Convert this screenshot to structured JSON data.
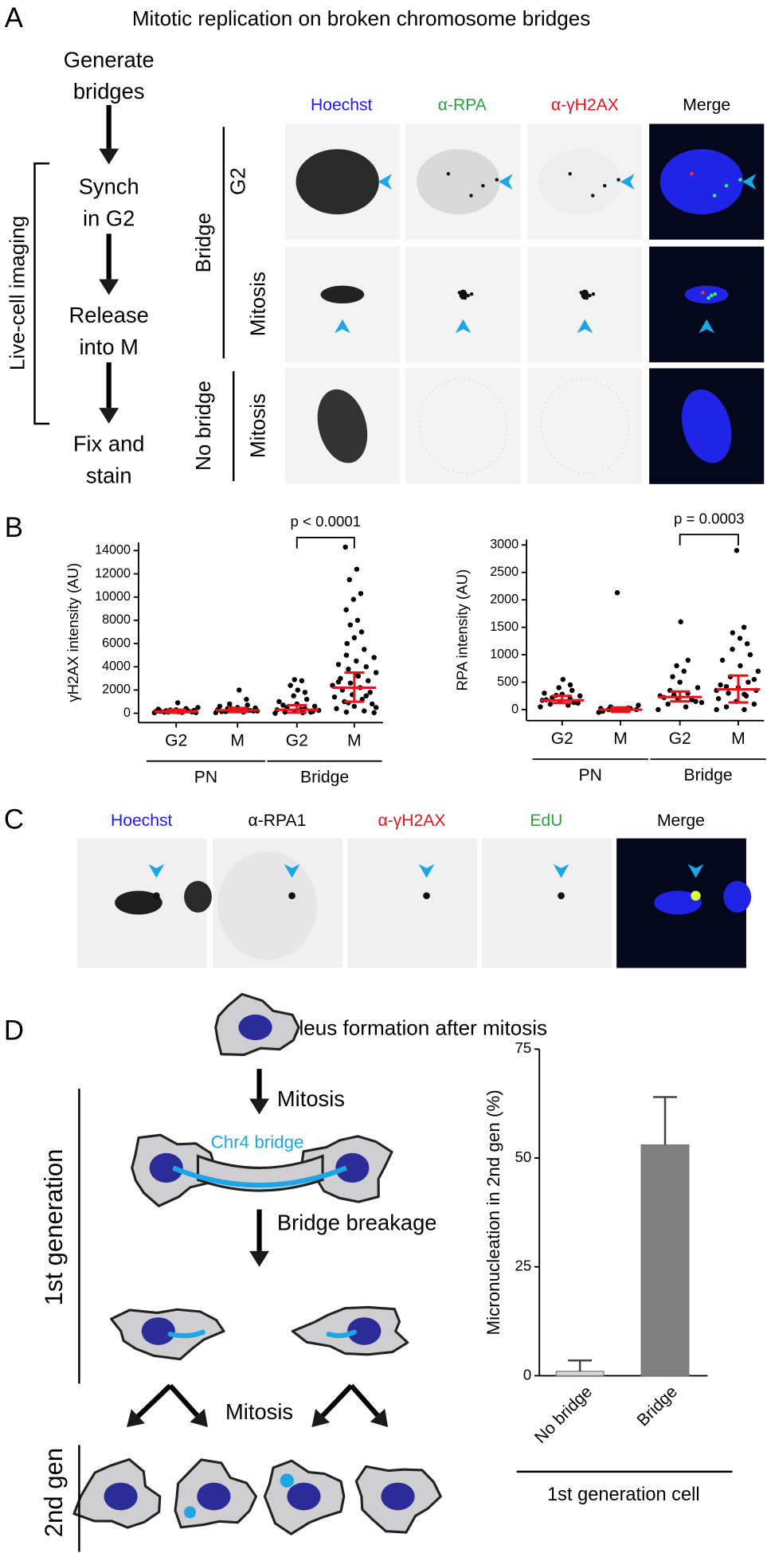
{
  "panel_a": {
    "label": "A",
    "title": "Mitotic replication on broken chromosome bridges",
    "workflow": [
      [
        "Generate",
        "bridges"
      ],
      [
        "Synch",
        "in G2"
      ],
      [
        "Release",
        "into M"
      ],
      [
        "Fix and",
        "stain"
      ]
    ],
    "bracket_label": "Live-cell imaging",
    "columns": [
      "Hoechst",
      "α-RPA",
      "α-γH2AX",
      "Merge"
    ],
    "row_groups": [
      "Bridge",
      "No bridge"
    ],
    "rows": [
      "G2",
      "Mitosis",
      "Mitosis"
    ]
  },
  "panel_b": {
    "label": "B"
  },
  "chart_data": [
    {
      "type": "strip",
      "ylabel": "γH2AX intensity (AU)",
      "categories": [
        "G2",
        "M",
        "G2",
        "M"
      ],
      "groups": [
        "PN",
        "Bridge"
      ],
      "ylim": [
        -800,
        14700
      ],
      "yticks": [
        0,
        2000,
        4000,
        6000,
        8000,
        10000,
        12000,
        14000
      ],
      "points": [
        [
          50,
          80,
          100,
          120,
          150,
          180,
          200,
          220,
          250,
          300,
          350,
          400,
          100,
          60,
          130,
          170,
          210,
          280,
          500,
          900
        ],
        [
          50,
          100,
          150,
          200,
          250,
          300,
          350,
          400,
          450,
          500,
          600,
          700,
          800,
          200,
          300,
          150,
          250,
          400,
          1200,
          2000
        ],
        [
          0,
          50,
          100,
          150,
          200,
          300,
          400,
          500,
          600,
          800,
          1000,
          1200,
          1500,
          1800,
          2000,
          2400,
          2800,
          2900,
          250,
          350,
          700,
          100
        ],
        [
          14300,
          12400,
          11500,
          10300,
          9800,
          8900,
          8000,
          7600,
          7000,
          6500,
          6000,
          5500,
          5000,
          4800,
          4500,
          4200,
          4000,
          3800,
          3500,
          3200,
          3000,
          2800,
          2600,
          2400,
          2200,
          2000,
          1800,
          1600,
          1400,
          1200,
          1000,
          800,
          600,
          400,
          200,
          100,
          50,
          3300,
          2700,
          1500,
          900,
          500
        ]
      ],
      "median": [
        150,
        250,
        300,
        2200
      ],
      "q1": [
        50,
        100,
        50,
        1000
      ],
      "q3": [
        300,
        450,
        700,
        3500
      ],
      "point_color": "#000000",
      "stat_color": "#e8141b",
      "annotation": "p < 0.0001"
    },
    {
      "type": "strip",
      "ylabel": "RPA intensity (AU)",
      "categories": [
        "G2",
        "M",
        "G2",
        "M"
      ],
      "groups": [
        "PN",
        "Bridge"
      ],
      "ylim": [
        -200,
        3100
      ],
      "yticks": [
        0,
        500,
        1000,
        1500,
        2000,
        2500,
        3000
      ],
      "points": [
        [
          50,
          80,
          100,
          120,
          150,
          170,
          200,
          220,
          250,
          280,
          300,
          350,
          400,
          450,
          550,
          180,
          130,
          260
        ],
        [
          -50,
          -20,
          0,
          0,
          10,
          20,
          30,
          50,
          80,
          0,
          -30,
          20,
          2130
        ],
        [
          0,
          50,
          100,
          150,
          200,
          250,
          300,
          350,
          400,
          500,
          600,
          700,
          800,
          900,
          1600,
          220,
          180,
          270,
          130
        ],
        [
          0,
          0,
          50,
          100,
          150,
          200,
          250,
          300,
          350,
          400,
          450,
          500,
          600,
          700,
          800,
          900,
          1000,
          1100,
          1200,
          1300,
          1400,
          1500,
          2900,
          350,
          280,
          420,
          550
        ]
      ],
      "median": [
        170,
        0,
        230,
        370
      ],
      "q1": [
        120,
        -40,
        150,
        130
      ],
      "q3": [
        250,
        40,
        330,
        620
      ],
      "point_color": "#000000",
      "stat_color": "#e8141b",
      "annotation": "p = 0.0003"
    },
    {
      "type": "bar",
      "ylabel": "Micronucleation in 2nd gen (%)",
      "xlabel": "1st generation cell",
      "categories": [
        "No bridge",
        "Bridge"
      ],
      "values": [
        1,
        53
      ],
      "errors": [
        2.5,
        11
      ],
      "colors": [
        "#d9d9d9",
        "#808080"
      ],
      "ylim": [
        0,
        75
      ],
      "yticks": [
        0,
        25,
        50,
        75
      ]
    }
  ],
  "panel_c": {
    "label": "C",
    "columns": [
      "Hoechst",
      "α-RPA1",
      "α-γH2AX",
      "EdU",
      "Merge"
    ]
  },
  "panel_d": {
    "label": "D",
    "title": "Micronucleus formation after mitosis",
    "labels": {
      "mitosis_1": "Mitosis",
      "bridge": "Chr4 bridge",
      "breakage": "Bridge breakage",
      "mitosis_2": "Mitosis"
    },
    "generations": [
      "1st generation",
      "2nd gen"
    ]
  }
}
